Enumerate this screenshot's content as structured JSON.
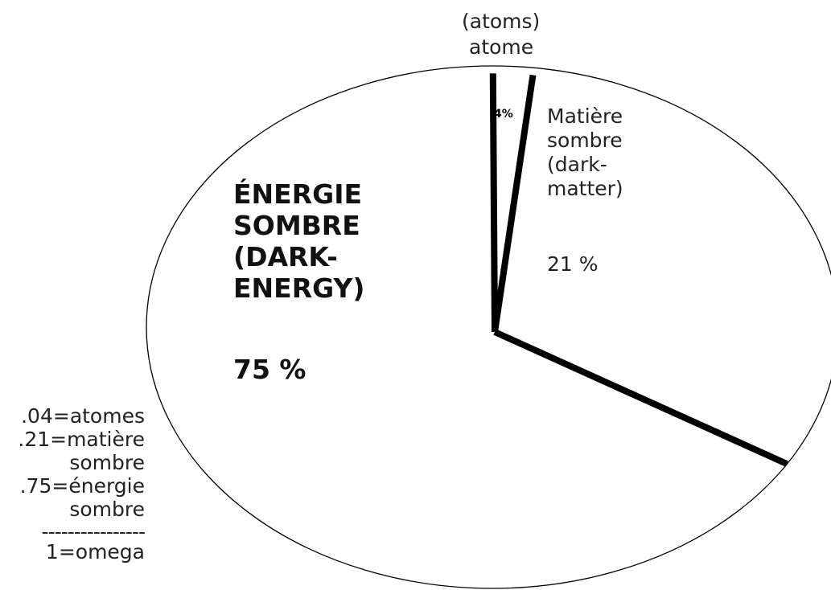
{
  "chart_data": {
    "type": "pie",
    "slices": [
      {
        "key": "atoms",
        "value": 4,
        "label_top": "(atoms)",
        "label_bottom": "atome",
        "pct_label": "4%"
      },
      {
        "key": "dark_matter",
        "value": 21,
        "label": "Matière\nsombre\n(dark-\nmatter)",
        "pct_label": "21 %"
      },
      {
        "key": "dark_energy",
        "value": 75,
        "label": "ÉNERGIE\nSOMBRE\n(DARK-\nENERGY)",
        "pct_label": "75 %"
      }
    ],
    "legend": {
      "lines": [
        ".04=atomes",
        ".21=matière",
        "sombre",
        ".75=énergie",
        "sombre"
      ],
      "divider": "----------------",
      "total": "1=omega"
    }
  },
  "colors": {
    "background": "#ffffff",
    "outline": "#000000"
  }
}
